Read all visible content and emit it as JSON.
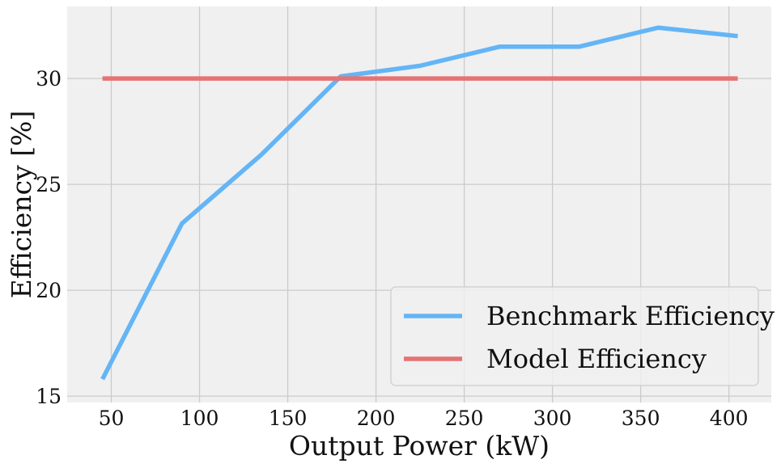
{
  "chart_data": {
    "type": "line",
    "title": "",
    "xlabel": "Output Power (kW)",
    "ylabel": "Efficiency [%]",
    "xlim": [
      25,
      424
    ],
    "ylim": [
      14.7,
      33.4
    ],
    "x_ticks": [
      50,
      100,
      150,
      200,
      250,
      300,
      350,
      400
    ],
    "y_ticks": [
      15,
      20,
      25,
      30
    ],
    "grid": true,
    "legend_position": "bottom-right",
    "series": [
      {
        "name": "Benchmark Efficiency",
        "color": "#64b5f6",
        "x": [
          45,
          90,
          135,
          180,
          225,
          270,
          315,
          360,
          405
        ],
        "y": [
          15.8,
          23.15,
          26.4,
          30.1,
          30.6,
          31.5,
          31.5,
          32.4,
          32.0
        ]
      },
      {
        "name": "Model Efficiency",
        "color": "#e57373",
        "x": [
          45,
          405
        ],
        "y": [
          30.0,
          30.0
        ]
      }
    ]
  },
  "style": {
    "plot_background": "#f0f0f0",
    "grid_color": "#cbcbcb",
    "legend_background": "#f0f0f0",
    "legend_border": "#cccccc"
  }
}
